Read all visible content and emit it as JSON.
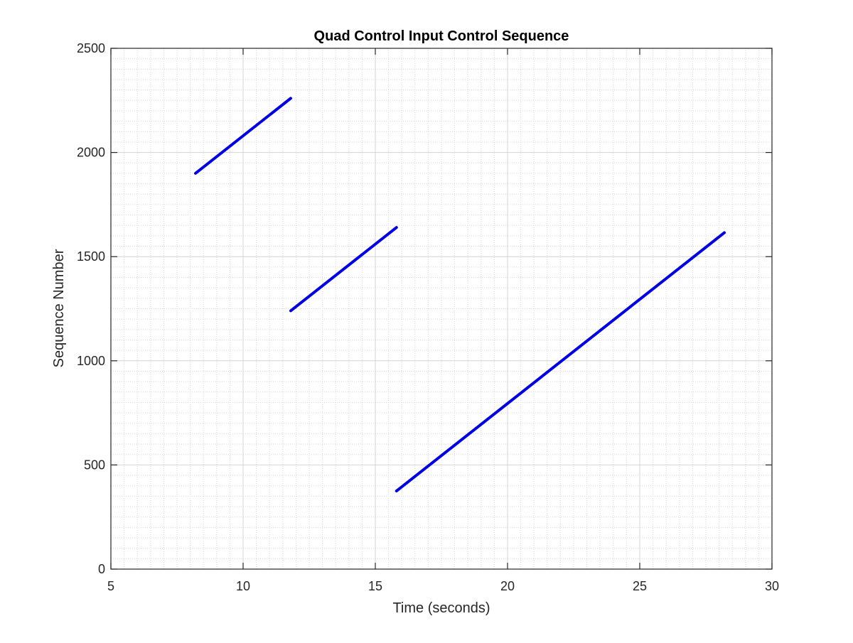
{
  "chart_data": {
    "type": "line",
    "title": "Quad Control Input Control Sequence",
    "xlabel": "Time (seconds)",
    "ylabel": "Sequence Number",
    "xlim": [
      5,
      30
    ],
    "ylim": [
      0,
      2500
    ],
    "xticks": [
      5,
      10,
      15,
      20,
      25,
      30
    ],
    "yticks": [
      0,
      500,
      1000,
      1500,
      2000,
      2500
    ],
    "xtick_labels": [
      "5",
      "10",
      "15",
      "20",
      "25",
      "30"
    ],
    "ytick_labels": [
      "0",
      "500",
      "1000",
      "1500",
      "2000",
      "2500"
    ],
    "grid": true,
    "minor_grid": true,
    "legend": null,
    "series": [
      {
        "color": "#0000e6",
        "segments": [
          {
            "x": [
              8.2,
              11.8
            ],
            "y": [
              1900,
              2260
            ]
          },
          {
            "x": [
              11.8,
              15.8
            ],
            "y": [
              1240,
              1640
            ]
          },
          {
            "x": [
              15.8,
              28.2
            ],
            "y": [
              375,
              1615
            ]
          }
        ]
      }
    ]
  }
}
